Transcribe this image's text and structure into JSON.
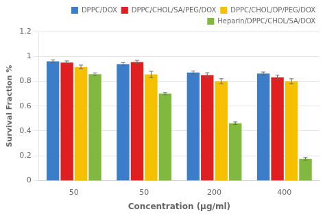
{
  "chart_data": {
    "type": "bar",
    "xlabel": "Concentration (μg/ml)",
    "ylabel": "Survival Fraction %",
    "categories": [
      "50",
      "50",
      "200",
      "400"
    ],
    "series": [
      {
        "name": "DPPC/DOX",
        "color": "#3B7DC8",
        "values": [
          0.96,
          0.938,
          0.87,
          0.862
        ],
        "errors": [
          0.012,
          0.012,
          0.012,
          0.012
        ]
      },
      {
        "name": "DPPC/CHOL/SA/PEG/DOX",
        "color": "#E02020",
        "values": [
          0.95,
          0.955,
          0.85,
          0.832
        ],
        "errors": [
          0.013,
          0.013,
          0.018,
          0.018
        ]
      },
      {
        "name": "DPPC/CHOL/DP/PEG/DOX",
        "color": "#F5C000",
        "values": [
          0.915,
          0.855,
          0.8,
          0.8
        ],
        "errors": [
          0.015,
          0.025,
          0.02,
          0.02
        ]
      },
      {
        "name": "Heparin/DPPC/CHOL/SA/DOX",
        "color": "#80B840",
        "values": [
          0.857,
          0.7,
          0.462,
          0.175
        ],
        "errors": [
          0.01,
          0.01,
          0.01,
          0.01
        ]
      }
    ],
    "ylim": [
      0,
      1.2
    ],
    "yticks": [
      0,
      0.2,
      0.4,
      0.6,
      0.8,
      1,
      1.2
    ],
    "grid": true,
    "legend": "upper right"
  }
}
